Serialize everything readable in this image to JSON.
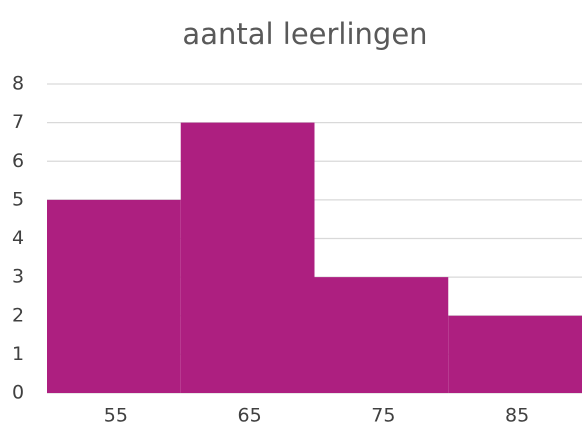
{
  "chart_data": {
    "type": "bar",
    "title": "aantal leerlingen",
    "categories": [
      "55",
      "65",
      "75",
      "85"
    ],
    "values": [
      5,
      7,
      3,
      2
    ],
    "color": "#ad1f80",
    "ylim": [
      0,
      8
    ],
    "yticks": [
      0,
      1,
      2,
      3,
      4,
      5,
      6,
      7,
      8
    ],
    "grid": true
  }
}
